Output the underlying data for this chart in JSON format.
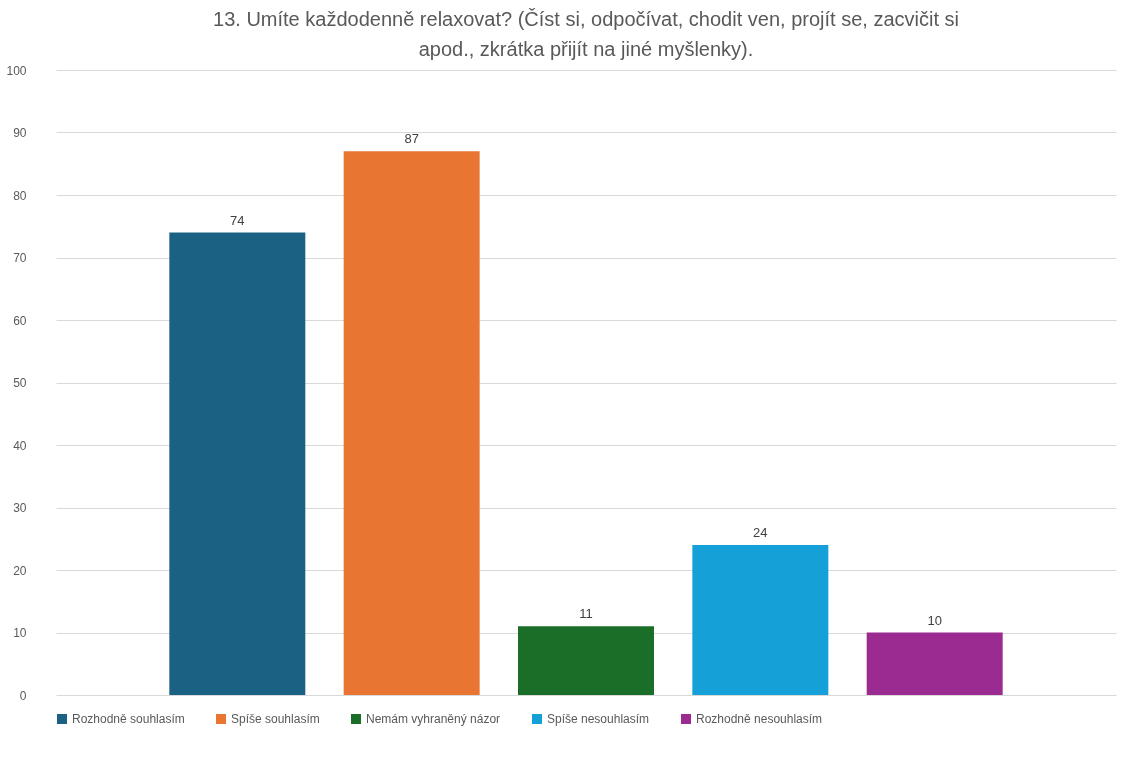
{
  "chart_data": {
    "type": "bar",
    "title": "13. Umíte každodenně relaxovat? (Číst si, odpočívat, chodit ven, projít se, zacvičit si apod., zkrátka přijít na jiné myšlenky).",
    "categories": [
      null
    ],
    "series": [
      {
        "name": "Rozhodně souhlasím",
        "color": "#1b6183",
        "values": [
          74
        ]
      },
      {
        "name": "Spíše souhlasím",
        "color": "#e97532",
        "values": [
          87
        ]
      },
      {
        "name": "Nemám vyhraněný názor",
        "color": "#1b6e28",
        "values": [
          11
        ]
      },
      {
        "name": "Spíše nesouhlasím",
        "color": "#15a0d8",
        "values": [
          24
        ]
      },
      {
        "name": "Rozhodně nesouhlasím",
        "color": "#9c2b91",
        "values": [
          10
        ]
      }
    ],
    "ylim": [
      0,
      100
    ],
    "yticks": [
      0,
      10,
      20,
      30,
      40,
      50,
      60,
      70,
      80,
      90,
      100
    ],
    "grid": "y",
    "legend": "bottom",
    "data_labels": true
  }
}
